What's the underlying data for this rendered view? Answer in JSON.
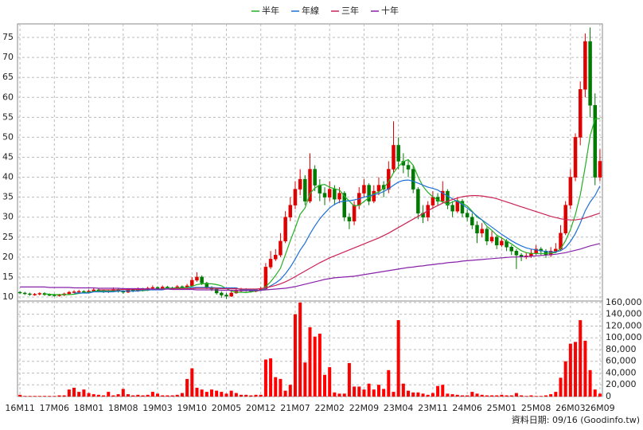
{
  "chart_data": {
    "type": "candlestick",
    "source": "資料日期: 09/16 (Goodinfo.tw)",
    "categories": [
      "16M11",
      null,
      null,
      null,
      null,
      null,
      null,
      "17M06",
      null,
      null,
      null,
      null,
      null,
      null,
      "18M01",
      null,
      null,
      null,
      null,
      null,
      null,
      "18M08",
      null,
      null,
      null,
      null,
      null,
      null,
      "19M03",
      null,
      null,
      null,
      null,
      null,
      null,
      "19M10",
      null,
      null,
      null,
      null,
      null,
      null,
      "20M05",
      null,
      null,
      null,
      null,
      null,
      null,
      "20M12",
      null,
      null,
      null,
      null,
      null,
      null,
      "21M07",
      null,
      null,
      null,
      null,
      null,
      null,
      "22M02",
      null,
      null,
      null,
      null,
      null,
      null,
      "22M09",
      null,
      null,
      null,
      null,
      null,
      null,
      "23M04",
      null,
      null,
      null,
      null,
      null,
      null,
      "23M11",
      null,
      null,
      null,
      null,
      null,
      null,
      "24M06",
      null,
      null,
      null,
      null,
      null,
      null,
      "25M01",
      null,
      null,
      null,
      null,
      null,
      null,
      "25M08",
      null,
      null,
      null,
      null,
      null,
      null,
      "26M03",
      null,
      null,
      null,
      null,
      null,
      "26M09"
    ],
    "open": [
      11.2,
      11.0,
      10.8,
      10.6,
      10.7,
      10.9,
      10.6,
      10.5,
      10.4,
      10.5,
      10.8,
      11.2,
      11.3,
      11.4,
      11.2,
      11.5,
      11.8,
      11.6,
      11.3,
      11.5,
      11.9,
      11.4,
      11.2,
      11.8,
      11.5,
      12.0,
      11.7,
      12.2,
      12.4,
      12.0,
      12.5,
      12.3,
      12.1,
      12.6,
      12.4,
      12.8,
      14.2,
      15.0,
      13.5,
      12.4,
      12.0,
      11.0,
      10.5,
      10.2,
      11.0,
      11.5,
      11.8,
      11.6,
      11.4,
      11.7,
      12.0,
      17.5,
      19.5,
      20.5,
      24.0,
      30.0,
      33.0,
      37.0,
      39.5,
      34.0,
      42.0,
      38.0,
      36.0,
      35.0,
      37.0,
      34.5,
      36.0,
      30.0,
      29.0,
      33.0,
      36.0,
      38.0,
      34.0,
      36.5,
      38.0,
      37.0,
      42.0,
      48.0,
      44.0,
      43.0,
      42.0,
      37.0,
      31.0,
      30.0,
      33.0,
      35.0,
      34.0,
      36.5,
      33.0,
      31.5,
      34.0,
      31.0,
      30.0,
      28.0,
      26.0,
      27.0,
      24.0,
      25.0,
      23.0,
      24.0,
      22.5,
      21.5,
      20.5,
      20.0,
      20.3,
      21.0,
      22.0,
      21.5,
      20.5,
      21.5,
      22.0,
      26.0,
      33.0,
      40.0,
      50.0,
      62.0,
      74.0,
      58.0,
      40.0
    ],
    "high": [
      11.5,
      11.3,
      11.1,
      11.0,
      11.2,
      11.2,
      10.9,
      10.8,
      10.8,
      11.1,
      11.5,
      11.7,
      11.8,
      11.7,
      11.9,
      12.3,
      12.1,
      11.9,
      11.8,
      12.4,
      12.2,
      11.7,
      12.2,
      12.1,
      12.4,
      12.3,
      12.6,
      12.9,
      12.7,
      12.9,
      12.8,
      12.6,
      13.0,
      12.9,
      13.3,
      15.0,
      16.2,
      15.4,
      13.8,
      12.7,
      12.2,
      11.4,
      11.0,
      11.4,
      12.0,
      12.3,
      12.2,
      11.9,
      12.1,
      12.6,
      18.5,
      21.5,
      22.0,
      26.0,
      31.5,
      35.0,
      39.0,
      42.0,
      40.5,
      46.0,
      43.0,
      39.5,
      37.5,
      39.0,
      38.0,
      37.5,
      36.5,
      31.0,
      34.0,
      37.5,
      39.5,
      38.5,
      38.0,
      40.0,
      39.0,
      44.0,
      54.0,
      50.0,
      46.0,
      44.5,
      43.0,
      37.5,
      33.0,
      34.0,
      36.5,
      36.0,
      39.0,
      37.0,
      34.0,
      35.0,
      34.5,
      32.0,
      31.0,
      29.0,
      28.5,
      27.5,
      26.5,
      25.5,
      25.0,
      24.5,
      23.0,
      22.0,
      21.0,
      21.0,
      22.0,
      23.0,
      22.5,
      22.0,
      22.5,
      23.5,
      28.0,
      34.0,
      42.0,
      51.0,
      64.0,
      76.0,
      77.5,
      61.0,
      47.0
    ],
    "low": [
      10.7,
      10.5,
      10.3,
      10.3,
      10.4,
      10.3,
      10.2,
      10.1,
      10.1,
      10.2,
      10.5,
      10.9,
      11.0,
      10.9,
      10.9,
      11.2,
      11.3,
      11.0,
      11.0,
      11.2,
      11.1,
      10.8,
      11.0,
      11.2,
      11.3,
      11.4,
      11.5,
      11.9,
      11.7,
      11.8,
      12.0,
      11.8,
      11.9,
      12.1,
      12.2,
      12.6,
      13.8,
      13.0,
      12.0,
      11.5,
      10.6,
      9.8,
      9.5,
      10.0,
      10.8,
      11.2,
      11.3,
      11.1,
      11.2,
      11.5,
      11.8,
      17.0,
      19.0,
      20.0,
      23.5,
      29.0,
      32.0,
      35.5,
      33.0,
      33.5,
      36.5,
      34.0,
      33.0,
      34.0,
      33.0,
      33.5,
      29.0,
      27.0,
      28.0,
      32.0,
      35.0,
      33.0,
      33.5,
      35.5,
      35.0,
      36.0,
      41.0,
      42.0,
      41.0,
      40.0,
      36.0,
      29.5,
      28.5,
      29.0,
      32.0,
      33.0,
      33.5,
      32.0,
      30.0,
      31.0,
      30.0,
      29.0,
      27.0,
      23.5,
      25.0,
      23.0,
      23.5,
      22.0,
      22.5,
      21.5,
      20.5,
      17.0,
      19.0,
      19.5,
      19.8,
      20.5,
      20.5,
      19.8,
      20.0,
      21.0,
      21.5,
      25.5,
      32.0,
      39.0,
      48.0,
      60.0,
      55.0,
      38.0,
      39.0
    ],
    "close": [
      11.0,
      10.8,
      10.6,
      10.7,
      10.9,
      10.6,
      10.5,
      10.4,
      10.5,
      10.8,
      11.2,
      11.3,
      11.4,
      11.2,
      11.5,
      11.8,
      11.6,
      11.3,
      11.5,
      11.9,
      11.4,
      11.2,
      11.8,
      11.5,
      12.0,
      11.7,
      12.2,
      12.4,
      12.0,
      12.5,
      12.3,
      12.1,
      12.6,
      12.4,
      12.8,
      14.2,
      15.0,
      13.5,
      12.4,
      12.0,
      11.0,
      10.5,
      10.2,
      11.0,
      11.5,
      11.8,
      11.6,
      11.4,
      11.7,
      12.0,
      17.5,
      19.5,
      20.5,
      24.0,
      30.0,
      33.0,
      37.0,
      39.5,
      34.0,
      42.0,
      38.0,
      36.0,
      35.0,
      37.0,
      34.5,
      36.0,
      30.0,
      29.0,
      33.0,
      36.0,
      38.0,
      34.0,
      36.5,
      38.0,
      37.0,
      42.0,
      48.0,
      44.0,
      43.0,
      42.0,
      37.0,
      31.0,
      30.0,
      33.0,
      35.0,
      34.0,
      36.5,
      33.0,
      31.5,
      34.0,
      31.0,
      30.0,
      28.0,
      26.0,
      27.0,
      24.0,
      25.0,
      23.0,
      24.0,
      22.5,
      21.5,
      20.5,
      20.0,
      20.3,
      21.0,
      22.0,
      21.5,
      20.5,
      21.5,
      22.0,
      26.0,
      33.0,
      40.0,
      50.0,
      62.0,
      74.0,
      58.0,
      40.0,
      44.0
    ],
    "up_color": "#e00000",
    "down_color": "#007a00",
    "series": [
      {
        "name": "半年",
        "color": "#22b022",
        "values": [
          null,
          null,
          null,
          null,
          null,
          10.8,
          10.7,
          10.6,
          10.6,
          10.6,
          10.6,
          10.7,
          10.9,
          11.1,
          11.2,
          11.4,
          11.5,
          11.5,
          11.5,
          11.5,
          11.5,
          11.5,
          11.5,
          11.5,
          11.6,
          11.6,
          11.7,
          11.9,
          11.9,
          12.1,
          12.2,
          12.2,
          12.3,
          12.3,
          12.4,
          12.7,
          13.1,
          13.3,
          13.3,
          13.3,
          13.1,
          12.8,
          12.1,
          11.5,
          11.2,
          11.2,
          11.1,
          11.3,
          11.5,
          11.7,
          12.6,
          13.8,
          15.4,
          17.2,
          20.6,
          24.1,
          27.3,
          30.7,
          32.3,
          35.9,
          37.3,
          38.0,
          38.2,
          37.5,
          37.1,
          36.8,
          35.3,
          34.0,
          32.8,
          33.0,
          33.9,
          34.9,
          35.9,
          36.3,
          37.3,
          38.9,
          41.1,
          42.7,
          43.9,
          44.4,
          43.0,
          40.1,
          37.7,
          36.2,
          35.1,
          34.3,
          33.8,
          33.2,
          33.8,
          34.2,
          33.5,
          32.8,
          31.5,
          30.0,
          29.3,
          27.7,
          26.7,
          25.5,
          24.8,
          24.0,
          23.3,
          22.4,
          21.6,
          21.1,
          20.9,
          20.9,
          20.9,
          20.9,
          21.0,
          21.1,
          22.1,
          24.1,
          26.9,
          30.6,
          35.6,
          42.6,
          50.4,
          54.6,
          54.7
        ]
      },
      {
        "name": "年線",
        "color": "#1e6fd9",
        "values": [
          null,
          null,
          null,
          null,
          null,
          null,
          null,
          null,
          null,
          null,
          null,
          11.0,
          11.0,
          11.0,
          11.0,
          11.3,
          11.3,
          11.3,
          11.3,
          11.3,
          11.5,
          11.5,
          11.5,
          11.5,
          11.5,
          11.8,
          11.8,
          11.8,
          11.8,
          11.8,
          12.1,
          12.1,
          12.1,
          12.1,
          12.1,
          12.4,
          12.4,
          12.4,
          12.4,
          12.4,
          12.3,
          12.3,
          12.3,
          12.3,
          12.3,
          11.8,
          11.8,
          11.8,
          11.8,
          11.6,
          12.1,
          12.8,
          13.5,
          14.4,
          15.8,
          17.5,
          19.5,
          21.7,
          23.5,
          25.8,
          27.8,
          29.6,
          31.0,
          32.3,
          33.2,
          33.8,
          34.0,
          34.1,
          34.3,
          34.6,
          35.0,
          35.3,
          35.6,
          35.9,
          36.4,
          37.1,
          38.0,
          38.8,
          39.2,
          39.3,
          39.0,
          38.5,
          38.0,
          37.5,
          37.2,
          36.8,
          36.0,
          35.3,
          34.6,
          33.9,
          33.2,
          32.3,
          31.3,
          30.3,
          29.3,
          28.4,
          27.5,
          26.6,
          25.7,
          24.9,
          24.1,
          23.4,
          22.8,
          22.3,
          22.0,
          21.8,
          21.6,
          21.4,
          21.3,
          21.3,
          21.6,
          22.4,
          23.9,
          25.9,
          28.5,
          31.6,
          33.8,
          35.4,
          37.8
        ]
      },
      {
        "name": "三年",
        "color": "#cc2255",
        "values": [
          null,
          null,
          null,
          null,
          null,
          null,
          null,
          null,
          null,
          null,
          null,
          null,
          null,
          null,
          null,
          null,
          11.8,
          11.8,
          11.8,
          11.8,
          11.8,
          11.9,
          11.9,
          11.9,
          11.9,
          11.9,
          12.0,
          12.0,
          12.0,
          12.0,
          12.0,
          12.1,
          12.1,
          12.1,
          12.1,
          12.1,
          12.2,
          12.2,
          12.2,
          12.2,
          12.2,
          12.1,
          12.1,
          12.1,
          12.1,
          12.0,
          12.0,
          12.0,
          12.0,
          12.1,
          12.3,
          12.6,
          12.9,
          13.3,
          13.8,
          14.4,
          15.1,
          15.8,
          16.5,
          17.2,
          17.9,
          18.6,
          19.2,
          19.8,
          20.3,
          20.8,
          21.3,
          21.8,
          22.3,
          22.8,
          23.3,
          23.8,
          24.3,
          24.8,
          25.4,
          26.0,
          26.7,
          27.4,
          28.1,
          28.8,
          29.5,
          30.2,
          30.9,
          31.6,
          32.3,
          32.9,
          33.5,
          34.0,
          34.4,
          34.8,
          35.1,
          35.3,
          35.4,
          35.4,
          35.3,
          35.1,
          34.9,
          34.6,
          34.2,
          33.8,
          33.4,
          33.0,
          32.6,
          32.2,
          31.8,
          31.4,
          31.0,
          30.6,
          30.2,
          29.9,
          29.6,
          29.4,
          29.3,
          29.3,
          29.5,
          29.8,
          30.2,
          30.6,
          31.0
        ]
      },
      {
        "name": "十年",
        "color": "#8822aa",
        "values": [
          12.5,
          12.5,
          12.5,
          12.5,
          12.5,
          12.5,
          12.4,
          12.4,
          12.4,
          12.4,
          12.4,
          12.3,
          12.3,
          12.3,
          12.3,
          12.3,
          12.2,
          12.2,
          12.2,
          12.2,
          12.2,
          12.1,
          12.1,
          12.1,
          12.1,
          12.1,
          12.0,
          12.0,
          12.0,
          12.0,
          12.0,
          11.9,
          11.9,
          11.9,
          11.9,
          11.9,
          11.8,
          11.8,
          11.8,
          11.8,
          11.8,
          11.7,
          11.7,
          11.7,
          11.7,
          11.6,
          11.6,
          11.6,
          11.6,
          11.7,
          11.8,
          11.9,
          12.0,
          12.1,
          12.2,
          12.4,
          12.6,
          12.9,
          13.2,
          13.5,
          13.8,
          14.1,
          14.4,
          14.6,
          14.8,
          14.9,
          15.0,
          15.1,
          15.2,
          15.4,
          15.6,
          15.8,
          16.0,
          16.2,
          16.4,
          16.6,
          16.8,
          17.0,
          17.2,
          17.4,
          17.5,
          17.7,
          17.8,
          18.0,
          18.1,
          18.3,
          18.4,
          18.6,
          18.7,
          18.8,
          19.0,
          19.1,
          19.2,
          19.3,
          19.4,
          19.5,
          19.6,
          19.7,
          19.8,
          19.9,
          20.0,
          20.0,
          20.1,
          20.1,
          20.2,
          20.3,
          20.4,
          20.5,
          20.6,
          20.7,
          20.9,
          21.1,
          21.4,
          21.7,
          22.0,
          22.4,
          22.8,
          23.1,
          23.4
        ]
      }
    ],
    "volume": {
      "color": "#ff0000",
      "values": [
        3000,
        1000,
        1000,
        1000,
        1000,
        1000,
        1000,
        1000,
        2000,
        2000,
        12000,
        15000,
        8000,
        12000,
        6000,
        4000,
        3000,
        2000,
        8000,
        2000,
        4000,
        13000,
        4000,
        2000,
        3000,
        2000,
        3000,
        8000,
        5000,
        2000,
        2000,
        2000,
        3000,
        6000,
        30000,
        48000,
        15000,
        12000,
        8000,
        12000,
        10000,
        8000,
        5000,
        10000,
        6000,
        3000,
        3000,
        2000,
        3000,
        3000,
        63000,
        65000,
        33000,
        30000,
        10000,
        20000,
        140000,
        160000,
        58000,
        118000,
        102000,
        107000,
        37000,
        50000,
        7000,
        5000,
        5000,
        57000,
        17000,
        17000,
        12000,
        22000,
        12000,
        20000,
        13000,
        45000,
        8000,
        130000,
        22000,
        10000,
        7000,
        7000,
        5000,
        3000,
        6000,
        18000,
        20000,
        5000,
        4000,
        3000,
        2000,
        2000,
        8000,
        5000,
        3000,
        2000,
        2000,
        2000,
        3000,
        2000,
        2000,
        6000,
        2000,
        1000,
        2000,
        1000,
        1000,
        2000,
        4000,
        8000,
        32000,
        60000,
        90000,
        93000,
        130000,
        95000,
        45000,
        12000,
        5000
      ]
    },
    "ylim": [
      9,
      78.4
    ],
    "yticks": [
      10,
      15,
      20,
      25,
      30,
      35,
      40,
      45,
      50,
      55,
      60,
      65,
      70,
      75
    ],
    "vlim": [
      0,
      162600
    ],
    "vticks": [
      0,
      {
        "value": 20000,
        "label": "20,000"
      },
      {
        "value": 40000,
        "label": "40,000"
      },
      {
        "value": 60000,
        "label": "60,000"
      },
      {
        "value": 80000,
        "label": "80,000"
      },
      {
        "value": 100000,
        "label": "100,000"
      },
      {
        "value": 120000,
        "label": "120,000"
      },
      {
        "value": 140000,
        "label": "140,000"
      },
      {
        "value": 160000,
        "label": "160,000"
      }
    ],
    "grid": true
  }
}
